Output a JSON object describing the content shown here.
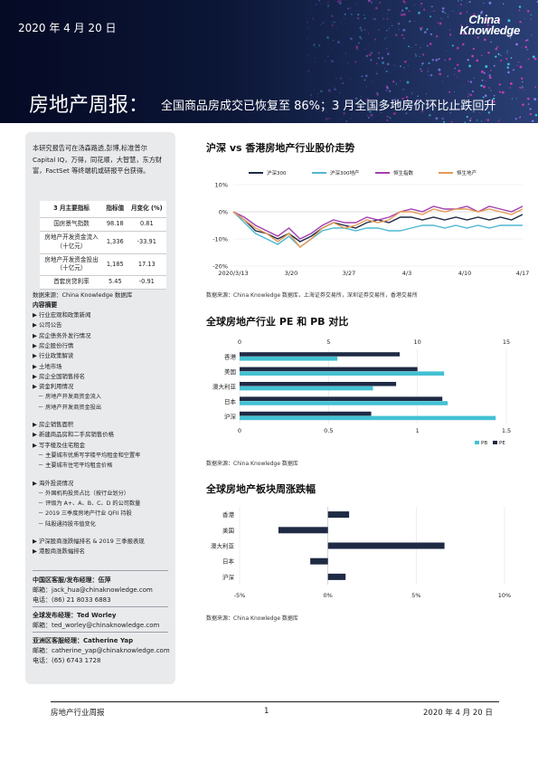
{
  "banner": {
    "date": "2020 年 4 月 20 日",
    "logo_line1": "China",
    "logo_line2": "Knowledge",
    "title_main": "房地产周报：",
    "title_sub": "全国商品房成交已恢复至 86%；3 月全国多地房价环比止跌回升"
  },
  "sidebar": {
    "intro": "本研究报告可在汤森路透,彭博,标准普尔 Capital IQ，万得，同花顺，大智慧，东方财富，FactSet 等终端机或研报平台获得。",
    "table": {
      "headers": [
        "3 月主要指标",
        "指标值",
        "月变化 (%)"
      ],
      "rows": [
        [
          "国房景气指数",
          "98.18",
          "0.81"
        ],
        [
          "房地产开发资金流入（十亿元）",
          "1,336",
          "-33.91"
        ],
        [
          "房地产开发资金投出（十亿元）",
          "1,185",
          "17.13"
        ],
        [
          "首套房贷利率",
          "5.45",
          "-0.91"
        ]
      ]
    },
    "source": "数据来源：China Knowledge 数据库",
    "contents_title": "内容摘要",
    "contents": [
      {
        "type": "item",
        "text": "▶ 行业宏观和政策新闻"
      },
      {
        "type": "item",
        "text": "▶ 公司公告"
      },
      {
        "type": "item",
        "text": "▶ 房企债务外发行情况"
      },
      {
        "type": "item",
        "text": "▶ 房企股份行情"
      },
      {
        "type": "item",
        "text": "▶ 行业政策解读"
      },
      {
        "type": "item",
        "text": "▶ 土地市场"
      },
      {
        "type": "item",
        "text": "▶ 房企全国销售排名"
      },
      {
        "type": "item",
        "text": "▶ 资金利用情况"
      },
      {
        "type": "sub",
        "text": "－ 房地产开发商资金流入"
      },
      {
        "type": "sub",
        "text": "－ 房地产开发商资金投出"
      },
      {
        "type": "gap"
      },
      {
        "type": "item",
        "text": "▶ 房企销售面积"
      },
      {
        "type": "item",
        "text": "▶ 新建商品房和二手房销售价格"
      },
      {
        "type": "item",
        "text": "▶ 写字楼及住宅租金"
      },
      {
        "type": "sub",
        "text": "－ 主要城市优质写字楼平均租金和空置率"
      },
      {
        "type": "sub",
        "text": "－ 主要城市住宅平均租金价格"
      },
      {
        "type": "gap"
      },
      {
        "type": "item",
        "text": "▶ 海外投资情况"
      },
      {
        "type": "sub",
        "text": "－ 外国机构投资占比（按行业划分）"
      },
      {
        "type": "sub",
        "text": "－ 评级为 A+、A、B、C、D 的公司数量"
      },
      {
        "type": "sub",
        "text": "－ 2019 三季度房地产行业 QFII 持股"
      },
      {
        "type": "sub",
        "text": "－ 陆股通持股市值变化"
      },
      {
        "type": "gap"
      },
      {
        "type": "item",
        "text": "▶ 沪深股商涨跌幅排名 & 2019 三季报表现"
      },
      {
        "type": "item",
        "text": "▶ 港股商涨跌幅排名"
      }
    ],
    "contacts": [
      {
        "name": "中国区客服/发布经理：伍萍",
        "lines": [
          "邮箱：jack_hua@chinaknowledge.com",
          "电话：(86) 21 8033 6883"
        ]
      },
      {
        "name": "全球发布经理：Ted Worley",
        "lines": [
          "邮箱：ted_worley@chinaknowledge.com"
        ]
      },
      {
        "name": "亚洲区客服经理：Catherine Yap",
        "lines": [
          "邮箱：catherine_yap@chinaknowledge.com",
          "电话：(65) 6743 1728"
        ]
      }
    ]
  },
  "charts": {
    "line": {
      "title": "沪深  vs  香港房地产行业股价走势",
      "source": "数据来源：China Knowledge 数据库，上海证券交易所，深圳证券交易所，香港交易所"
    },
    "pepb": {
      "title": "全球房地产行业  PE  和  PB  对比",
      "source": "数据来源：China Knowledge 数据库"
    },
    "weekly": {
      "title": "全球房地产板块周涨跌幅",
      "source": "数据来源：China Knowledge 数据库"
    }
  },
  "chart_data": [
    {
      "type": "line",
      "title": "沪深  vs  香港房地产行业股价走势",
      "x_tick_labels": [
        "2020/3/13",
        "3/20",
        "3/27",
        "4/3",
        "4/10",
        "4/17"
      ],
      "y_tick_labels": [
        "10%",
        "0%",
        "-10%",
        "-20%"
      ],
      "ylim": [
        -20,
        10
      ],
      "series": [
        {
          "name": "沪深300",
          "color": "#1f2a44",
          "values": [
            0,
            -3,
            -7,
            -8,
            -10,
            -8,
            -11,
            -9,
            -6,
            -4,
            -5,
            -6,
            -4,
            -3,
            -4,
            -2,
            -2,
            -3,
            -2,
            -3,
            -2,
            -3,
            -2,
            -3,
            -2,
            -3,
            -1
          ]
        },
        {
          "name": "沪深300地产",
          "color": "#4fb8d3",
          "values": [
            0,
            -4,
            -8,
            -10,
            -12,
            -9,
            -13,
            -10,
            -7,
            -6,
            -6,
            -7,
            -6,
            -6,
            -7,
            -7,
            -6,
            -5,
            -5,
            -6,
            -5,
            -6,
            -5,
            -6,
            -5,
            -5,
            -5
          ]
        },
        {
          "name": "恒生指数",
          "color": "#a340b0",
          "values": [
            0,
            -2,
            -5,
            -7,
            -9,
            -6,
            -10,
            -8,
            -5,
            -3,
            -4,
            -4,
            -2,
            -3,
            -2,
            0,
            1,
            0,
            2,
            1,
            1,
            2,
            0,
            2,
            1,
            0,
            2
          ]
        },
        {
          "name": "恒生地产",
          "color": "#e69a54",
          "values": [
            0,
            -3,
            -6,
            -8,
            -11,
            -8,
            -13,
            -10,
            -6,
            -4,
            -6,
            -5,
            -3,
            -4,
            -3,
            0,
            0,
            -1,
            1,
            0,
            1,
            1,
            0,
            1,
            0,
            -1,
            1
          ]
        }
      ]
    },
    {
      "type": "bar",
      "title": "全球房地产行业  PE  和  PB  对比",
      "categories": [
        "香港",
        "美国",
        "澳大利亚",
        "日本",
        "沪深"
      ],
      "top_axis_ticks": [
        "0",
        "5",
        "10",
        "15"
      ],
      "bottom_axis_ticks": [
        "0",
        "0.5",
        "1",
        "1.5"
      ],
      "series": [
        {
          "name": "PE",
          "color": "#1f2a44",
          "values": [
            9,
            10,
            8.8,
            11.4,
            7.4
          ]
        },
        {
          "name": "PB",
          "color": "#43c1d3",
          "values": [
            0.55,
            1.15,
            0.75,
            1.17,
            1.44
          ]
        }
      ]
    },
    {
      "type": "bar",
      "title": "全球房地产板块周涨跌幅",
      "categories": [
        "香港",
        "美国",
        "澳大利亚",
        "日本",
        "沪深"
      ],
      "x_tick_labels": [
        "-5%",
        "0%",
        "5%",
        "10%"
      ],
      "xlim": [
        -5,
        10
      ],
      "series": [
        {
          "color": "#1f2a44",
          "values": [
            1.2,
            -2.8,
            6.6,
            -1.0,
            1.0
          ]
        }
      ]
    }
  ],
  "footer": {
    "left": "房地产行业周报",
    "page": "1",
    "right": "2020 年 4 月 20 日"
  }
}
